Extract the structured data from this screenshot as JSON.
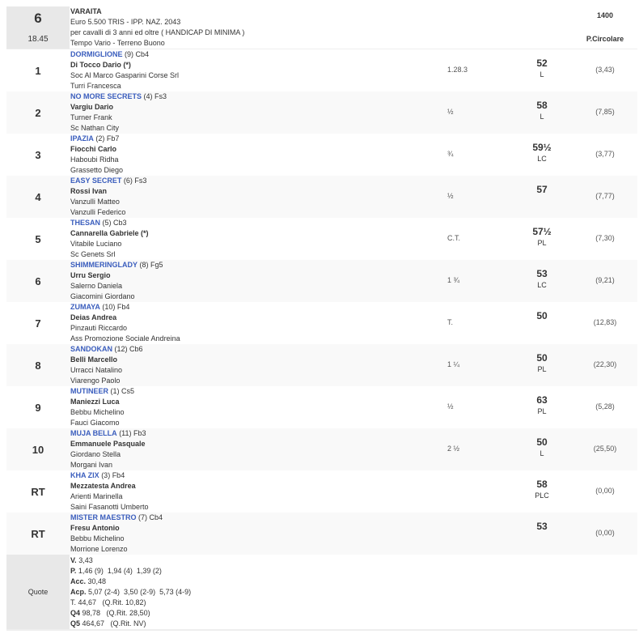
{
  "race": {
    "number": "6",
    "time": "18.45",
    "name": "VARAITA",
    "prize": "Euro 5.500 TRIS - IPP. NAZ. 2043",
    "conditions": "per cavalli di 3 anni ed oltre ( HANDICAP DI MINIMA )",
    "weather": "Tempo Vario - Terreno Buono",
    "distance": "1400",
    "track": "P.Circolare"
  },
  "colors": {
    "horse_link": "#3a5dbd",
    "header_bg": "#e8e8e8"
  },
  "runners": [
    {
      "pos": "1",
      "horse": "DORMIGLIONE",
      "detail": "(9) Cb4",
      "jockey": "Di Tocco Dario (*)",
      "owner": "Soc Al Marco Gasparini Corse Srl",
      "trainer": "Turri Francesca",
      "gap": "1.28.3",
      "weight": "52",
      "equip": "L",
      "odds": "(3,43)"
    },
    {
      "pos": "2",
      "horse": "NO MORE SECRETS",
      "detail": "(4) Fs3",
      "jockey": "Vargiu Dario",
      "owner": "Turner Frank",
      "trainer": "Sc Nathan City",
      "gap": "½",
      "weight": "58",
      "equip": "L",
      "odds": "(7,85)"
    },
    {
      "pos": "3",
      "horse": "IPAZIA",
      "detail": "(2) Fb7",
      "jockey": "Fiocchi Carlo",
      "owner": "Haboubi Ridha",
      "trainer": "Grassetto Diego",
      "gap": "¾",
      "weight": "59½",
      "equip": "LC",
      "odds": "(3,77)"
    },
    {
      "pos": "4",
      "horse": "EASY SECRET",
      "detail": "(6) Fs3",
      "jockey": "Rossi Ivan",
      "owner": "Vanzulli Matteo",
      "trainer": "Vanzulli Federico",
      "gap": "½",
      "weight": "57",
      "equip": "",
      "odds": "(7,77)"
    },
    {
      "pos": "5",
      "horse": "THESAN",
      "detail": "(5) Cb3",
      "jockey": "Cannarella Gabriele (*)",
      "owner": "Vitabile Luciano",
      "trainer": "Sc Genets Srl",
      "gap": "C.T.",
      "weight": "57½",
      "equip": "PL",
      "odds": "(7,30)"
    },
    {
      "pos": "6",
      "horse": "SHIMMERINGLADY",
      "detail": "(8) Fg5",
      "jockey": "Urru Sergio",
      "owner": "Salerno Daniela",
      "trainer": "Giacomini Giordano",
      "gap": "1 ¾",
      "weight": "53",
      "equip": "LC",
      "odds": "(9,21)"
    },
    {
      "pos": "7",
      "horse": "ZUMAYA",
      "detail": "(10) Fb4",
      "jockey": "Deias Andrea",
      "owner": "Pinzauti Riccardo",
      "trainer": "Ass Promozione Sociale Andreina",
      "gap": "T.",
      "weight": "50",
      "equip": "",
      "odds": "(12,83)"
    },
    {
      "pos": "8",
      "horse": "SANDOKAN",
      "detail": "(12) Cb6",
      "jockey": "Belli Marcello",
      "owner": "Urracci Natalino",
      "trainer": "Viarengo Paolo",
      "gap": "1 ¼",
      "weight": "50",
      "equip": "PL",
      "odds": "(22,30)"
    },
    {
      "pos": "9",
      "horse": "MUTINEER",
      "detail": "(1) Cs5",
      "jockey": "Maniezzi Luca",
      "owner": "Bebbu Michelino",
      "trainer": "Fauci Giacomo",
      "gap": "½",
      "weight": "63",
      "equip": "PL",
      "odds": "(5,28)"
    },
    {
      "pos": "10",
      "horse": "MUJA BELLA",
      "detail": "(11) Fb3",
      "jockey": "Emmanuele Pasquale",
      "owner": "Giordano Stella",
      "trainer": "Morgani Ivan",
      "gap": "2 ½",
      "weight": "50",
      "equip": "L",
      "odds": "(25,50)"
    },
    {
      "pos": "RT",
      "horse": "KHA ZIX",
      "detail": "(3) Fb4",
      "jockey": "Mezzatesta Andrea",
      "owner": "Arienti Marinella",
      "trainer": "Saini Fasanotti Umberto",
      "gap": "",
      "weight": "58",
      "equip": "PLC",
      "odds": "(0,00)"
    },
    {
      "pos": "RT",
      "horse": "MISTER MAESTRO",
      "detail": "(7) Cb4",
      "jockey": "Fresu Antonio",
      "owner": "Bebbu Michelino",
      "trainer": "Morrione Lorenzo",
      "gap": "",
      "weight": "53",
      "equip": "",
      "odds": "(0,00)"
    }
  ],
  "quote": {
    "label": "Quote",
    "lines": [
      {
        "k": "V.",
        "v": "3,43"
      },
      {
        "k": "P.",
        "v": "1,46 (9)  1,94 (4)  1,39 (2)"
      },
      {
        "k": "Acc.",
        "v": "30,48"
      },
      {
        "k": "Acp.",
        "v": "5,07 (2-4)  3,50 (2-9)  5,73 (4-9)"
      },
      {
        "k": "",
        "v": "T. 44,67   (Q.Rit. 10,82)"
      },
      {
        "k": "Q4",
        "v": "98,78   (Q.Rit. 28,50)"
      },
      {
        "k": "Q5",
        "v": "464,67   (Q.Rit. NV)"
      }
    ]
  }
}
